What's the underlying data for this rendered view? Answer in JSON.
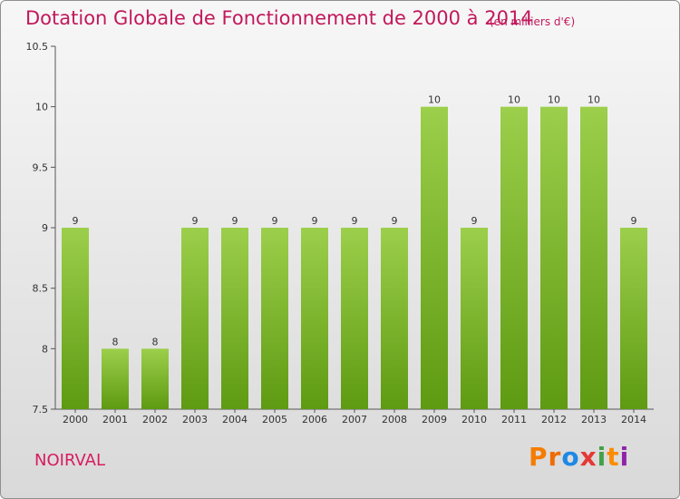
{
  "header": {
    "title": "Dotation Globale de Fonctionnement de 2000 à 2014",
    "subtitle": "(en milliers d'€)"
  },
  "footer": {
    "commune": "NOIRVAL",
    "brand": "Proxiti"
  },
  "colors": {
    "bar_light": "#9ccf4b",
    "bar_dark": "#5e9a12",
    "title": "#c2185b",
    "brand": [
      "#f57c00",
      "#ef6c00",
      "#1e88e5",
      "#e53935",
      "#43a047",
      "#fb8c00",
      "#8e24aa"
    ]
  },
  "chart_data": {
    "type": "bar",
    "categories": [
      "2000",
      "2001",
      "2002",
      "2003",
      "2004",
      "2005",
      "2006",
      "2007",
      "2008",
      "2009",
      "2010",
      "2011",
      "2012",
      "2013",
      "2014"
    ],
    "values": [
      9,
      8,
      8,
      9,
      9,
      9,
      9,
      9,
      9,
      10,
      9,
      10,
      10,
      10,
      9
    ],
    "data_labels": [
      "9",
      "8",
      "8",
      "9",
      "9",
      "9",
      "9",
      "9",
      "9",
      "10",
      "9",
      "10",
      "10",
      "10",
      "9"
    ],
    "title": "Dotation Globale de Fonctionnement de 2000 à 2014",
    "subtitle": "(en milliers d'€)",
    "xlabel": "",
    "ylabel": "",
    "ylim": [
      7.5,
      10.5
    ],
    "yticks": [
      7.5,
      8,
      8.5,
      9,
      9.5,
      10,
      10.5
    ],
    "ytick_labels": [
      "7.5",
      "8",
      "8.5",
      "9",
      "9.5",
      "10",
      "10.5"
    ],
    "grid": false,
    "legend": "none"
  }
}
